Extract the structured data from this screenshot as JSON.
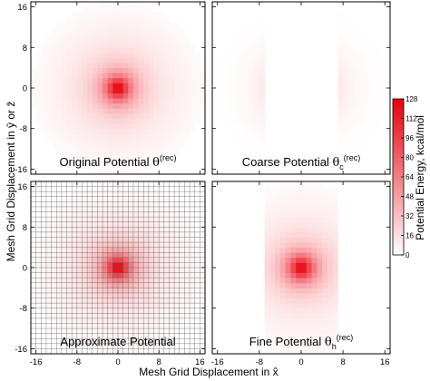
{
  "chart_data": [
    {
      "type": "heatmap",
      "id": "original",
      "title_main": "Original Potential ",
      "title_symbol": "θ",
      "title_sub": "",
      "title_sup": "(rec)",
      "profile": "full",
      "grid_overlay": false,
      "xlim": [
        -16,
        16
      ],
      "ylim": [
        -16,
        16
      ],
      "peak_at": [
        0,
        0
      ],
      "peak_value": 128,
      "cutoff_radius": 17
    },
    {
      "type": "heatmap",
      "id": "coarse",
      "title_main": "Coarse Potential ",
      "title_symbol": "θ",
      "title_sub": "c",
      "title_sup": "(rec)",
      "profile": "coarse",
      "blank_x_range": [
        -7,
        7
      ],
      "grid_overlay": false,
      "xlim": [
        -16,
        16
      ],
      "ylim": [
        -16,
        16
      ]
    },
    {
      "type": "heatmap",
      "id": "approximate",
      "title_main": "Approximate Potential",
      "title_symbol": "",
      "title_sub": "",
      "title_sup": "",
      "profile": "full",
      "grid_overlay": true,
      "xlim": [
        -16,
        16
      ],
      "ylim": [
        -16,
        16
      ],
      "peak_at": [
        0,
        0
      ],
      "peak_value": 128
    },
    {
      "type": "heatmap",
      "id": "fine",
      "title_main": "Fine Potential ",
      "title_symbol": "θ",
      "title_sub": "h",
      "title_sup": "(rec)",
      "profile": "fine",
      "nonzero_x_range": [
        -7,
        7
      ],
      "grid_overlay": false,
      "xlim": [
        -16,
        16
      ],
      "ylim": [
        -16,
        16
      ],
      "peak_at": [
        0,
        0
      ],
      "peak_value": 128
    }
  ],
  "axes": {
    "xlabel": "Mesh Grid Displacement in x̂",
    "ylabel": "Mesh Grid Displacement in ŷ or ẑ",
    "ticks": [
      -16,
      -8,
      0,
      8,
      16
    ],
    "tick_labels": [
      "-16",
      "-8",
      "0",
      "8",
      "16"
    ]
  },
  "colorbar": {
    "label": "Potential Energy, kcal/mol",
    "min": 0,
    "max": 128,
    "ticks": [
      0,
      16,
      32,
      48,
      64,
      80,
      96,
      112,
      128
    ],
    "tick_labels": [
      "0",
      "16",
      "32",
      "48",
      "64",
      "80",
      "96",
      "112",
      "128"
    ],
    "color_low": "#ffffff",
    "color_high": "#e8000b"
  }
}
